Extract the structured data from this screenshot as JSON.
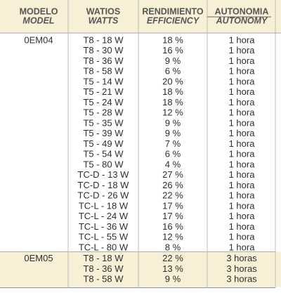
{
  "table": {
    "header": [
      {
        "title": "MODELO",
        "subtitle": "MODEL"
      },
      {
        "title": "WATIOS",
        "subtitle": "WATTS"
      },
      {
        "title": "RENDIMIENTO",
        "subtitle": "EFFICIENCY"
      },
      {
        "title": "AUTONOMIA",
        "subtitle": "AUTONOMY"
      }
    ],
    "groups": [
      {
        "model": "0EM04",
        "rows": [
          [
            "T8 - 18 W",
            "18 %",
            "1 hora"
          ],
          [
            "T8 - 30 W",
            "16 %",
            "1 hora"
          ],
          [
            "T8 - 36 W",
            "9 %",
            "1 hora"
          ],
          [
            "T8 - 58 W",
            "6 %",
            "1 hora"
          ],
          [
            "T5 - 14 W",
            "20 %",
            "1 hora"
          ],
          [
            "T5 - 21 W",
            "18 %",
            "1 hora"
          ],
          [
            "T5 - 24 W",
            "18 %",
            "1 hora"
          ],
          [
            "T5 - 28 W",
            "12 %",
            "1 hora"
          ],
          [
            "T5 - 35 W",
            "9 %",
            "1 hora"
          ],
          [
            "T5 - 39 W",
            "9 %",
            "1 hora"
          ],
          [
            "T5 - 49 W",
            "7 %",
            "1 hora"
          ],
          [
            "T5 - 54 W",
            "6 %",
            "1 hora"
          ],
          [
            "T5 - 80 W",
            "4 %",
            "1 hora"
          ],
          [
            "TC-D - 13 W",
            "27 %",
            "1 hora"
          ],
          [
            "TC-D - 18 W",
            "26 %",
            "1 hora"
          ],
          [
            "TC-D - 26 W",
            "22 %",
            "1 hora"
          ],
          [
            "TC-L - 18 W",
            "17 %",
            "1 hora"
          ],
          [
            "TC-L - 24 W",
            "17 %",
            "1 hora"
          ],
          [
            "TC-L - 36 W",
            "16 %",
            "1 hora"
          ],
          [
            "TC-L - 55 W",
            "12 %",
            "1 hora"
          ],
          [
            "TC-L - 80 W",
            "8 %",
            "1 hora"
          ]
        ]
      },
      {
        "model": "0EM05",
        "rows": [
          [
            "T8 - 18 W",
            "22 %",
            "3 horas"
          ],
          [
            "T8 - 36 W",
            "13 %",
            "3 horas"
          ],
          [
            "T8 - 58 W",
            "9 %",
            "3 horas"
          ]
        ]
      }
    ]
  }
}
